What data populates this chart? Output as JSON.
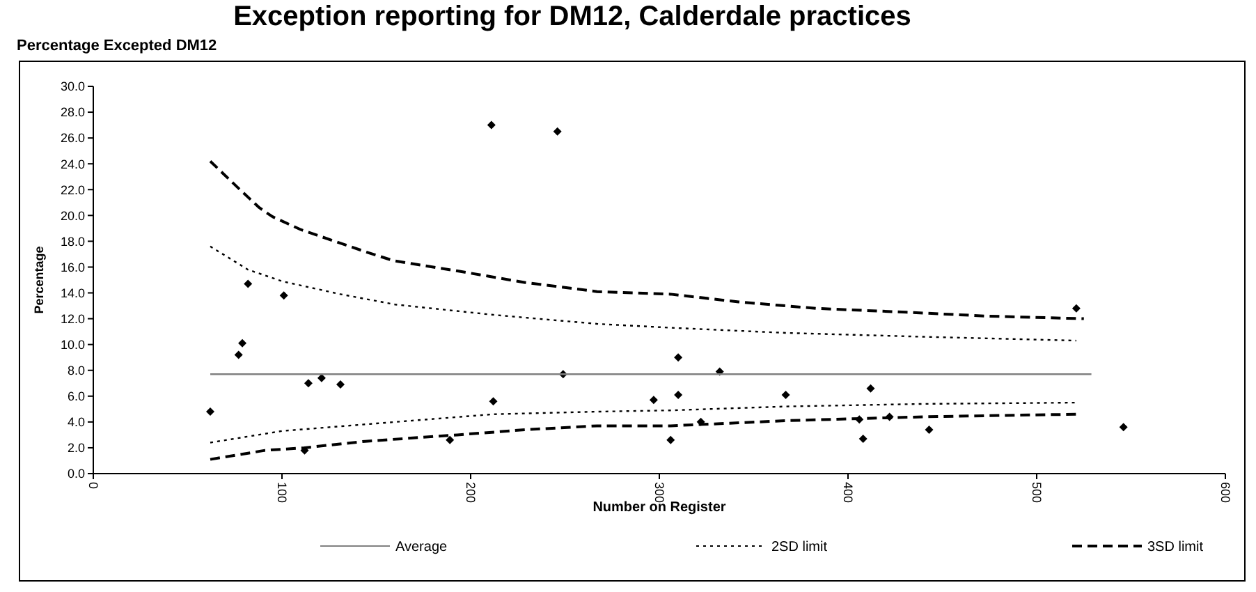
{
  "chart_data": {
    "type": "scatter",
    "title": "Exception reporting for DM12, Calderdale practices",
    "subtitle": "Percentage Excepted DM12",
    "xlabel": "Number on Register",
    "ylabel": "Percentage",
    "xlim": [
      0,
      600
    ],
    "xticks": [
      0,
      100,
      200,
      300,
      400,
      500,
      600
    ],
    "ylim": [
      0,
      30
    ],
    "yticks": [
      {
        "value": 0,
        "label": "0.0"
      },
      {
        "value": 2,
        "label": "2.0"
      },
      {
        "value": 4,
        "label": "4.0"
      },
      {
        "value": 6,
        "label": "6.0"
      },
      {
        "value": 8,
        "label": "8.0"
      },
      {
        "value": 10,
        "label": "10.0"
      },
      {
        "value": 12,
        "label": "12.0"
      },
      {
        "value": 14,
        "label": "14.0"
      },
      {
        "value": 16,
        "label": "16.0"
      },
      {
        "value": 18,
        "label": "18.0"
      },
      {
        "value": 20,
        "label": "20.0"
      },
      {
        "value": 22,
        "label": "22.0"
      },
      {
        "value": 24,
        "label": "24.0"
      },
      {
        "value": 26,
        "label": "26.0"
      },
      {
        "value": 28,
        "label": "28.0"
      },
      {
        "value": 30,
        "label": "30.0"
      }
    ],
    "grid": false,
    "legend": "bottom",
    "series": [
      {
        "color": "#000000",
        "marker": "diamond",
        "x": [
          62,
          77,
          79,
          82,
          101,
          114,
          112,
          121,
          131,
          189,
          212,
          249,
          211,
          246,
          297,
          306,
          310,
          310,
          322,
          332,
          367,
          406,
          408,
          412,
          422,
          443,
          521,
          546
        ],
        "values": [
          4.8,
          9.2,
          10.1,
          14.7,
          13.8,
          7.0,
          1.8,
          7.4,
          6.9,
          2.6,
          5.6,
          7.7,
          27.0,
          26.5,
          5.7,
          2.6,
          9.0,
          6.1,
          4.0,
          7.9,
          6.1,
          4.2,
          2.7,
          6.6,
          4.4,
          3.4,
          12.8,
          3.6
        ]
      },
      {
        "type": "line",
        "name": "Average",
        "color": "#808080",
        "line_style": "solid",
        "marker": "none",
        "x": [
          62,
          529
        ],
        "values": [
          7.7,
          7.7
        ]
      },
      {
        "type": "line",
        "name": "2SD limit",
        "color": "#000000",
        "line_style": "dotted",
        "marker": "none",
        "x": [
          62,
          82,
          100,
          131,
          160,
          212,
          267,
          306,
          367,
          440,
          521
        ],
        "values": [
          17.6,
          15.8,
          14.9,
          13.9,
          13.1,
          12.3,
          11.6,
          11.3,
          10.9,
          10.6,
          10.3
        ]
      },
      {
        "type": "line",
        "color": "#000000",
        "line_style": "dotted",
        "marker": "none",
        "x": [
          62,
          100,
          160,
          212,
          267,
          306,
          367,
          440,
          521
        ],
        "values": [
          2.4,
          3.3,
          4.0,
          4.6,
          4.8,
          4.9,
          5.2,
          5.4,
          5.5
        ]
      },
      {
        "type": "line",
        "name": "3SD limit",
        "color": "#000000",
        "line_style": "dashed",
        "marker": "none",
        "x": [
          62,
          77,
          88,
          95,
          110,
          144,
          159,
          193,
          229,
          267,
          306,
          342,
          383,
          431,
          474,
          525
        ],
        "values": [
          24.2,
          22.1,
          20.6,
          19.9,
          18.9,
          17.2,
          16.5,
          15.7,
          14.8,
          14.1,
          13.9,
          13.3,
          12.8,
          12.5,
          12.2,
          12.0
        ]
      },
      {
        "type": "line",
        "color": "#000000",
        "line_style": "dashed",
        "marker": "none",
        "x": [
          62,
          91,
          112,
          144,
          193,
          229,
          267,
          306,
          367,
          440,
          521
        ],
        "values": [
          1.1,
          1.8,
          2.0,
          2.5,
          3.0,
          3.4,
          3.7,
          3.7,
          4.1,
          4.4,
          4.6
        ]
      }
    ]
  }
}
